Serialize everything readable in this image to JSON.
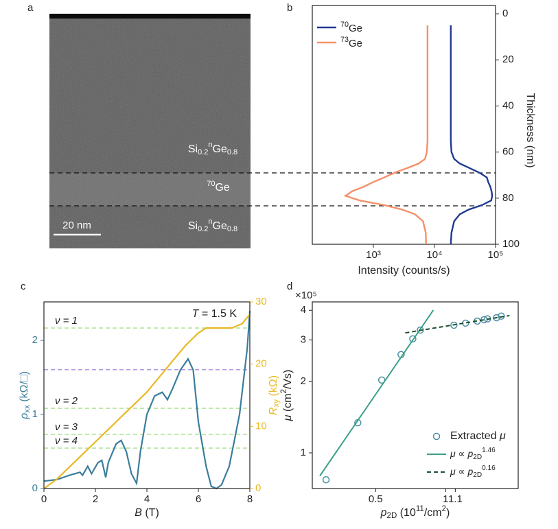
{
  "panel_a": {
    "label": "a",
    "layer_labels": [
      [
        "Si",
        "0.2",
        "n",
        "Ge",
        "0.8"
      ],
      [
        "70",
        "Ge"
      ],
      [
        "Si",
        "0.2",
        "n",
        "Ge",
        "0.8"
      ]
    ],
    "scale_bar": "20 nm"
  },
  "chart_data": [
    {
      "type": "line",
      "panel_label": "b",
      "orientation": "vertical",
      "xlabel": "Intensity (counts/s)",
      "ylabel": "Thickness (nm)",
      "xscale": "log",
      "xlim": [
        100,
        100000
      ],
      "xticks": [
        {
          "value": 1000,
          "label": "10³"
        },
        {
          "value": 10000,
          "label": "10⁴"
        },
        {
          "value": 100000,
          "label": "10⁵"
        }
      ],
      "ylim": [
        -3.6,
        100
      ],
      "yinverted": true,
      "yticks": [
        0,
        20,
        40,
        60,
        80,
        100
      ],
      "legend": "upper left",
      "thickness": [
        5,
        10,
        20,
        30,
        40,
        50,
        55,
        60,
        63,
        65,
        67,
        69,
        71,
        73,
        75,
        77,
        79,
        81,
        83,
        85,
        87,
        90,
        95,
        100
      ],
      "series": [
        {
          "name": [
            "70",
            "Ge"
          ],
          "color": "#1f3a93",
          "values": [
            18500,
            18500,
            18500,
            18500,
            18500,
            18500,
            18500,
            19000,
            21000,
            26000,
            38000,
            55000,
            72000,
            76000,
            82000,
            86000,
            88000,
            85000,
            60000,
            36000,
            26000,
            21000,
            19000,
            18500
          ]
        },
        {
          "name": [
            "73",
            "Ge"
          ],
          "color": "#f4916a",
          "values": [
            7700,
            7700,
            7700,
            7700,
            7700,
            7700,
            7700,
            7500,
            7000,
            5500,
            3500,
            2200,
            1500,
            1000,
            700,
            450,
            350,
            600,
            1500,
            3000,
            4800,
            6500,
            7200,
            7300
          ]
        }
      ]
    },
    {
      "type": "line",
      "panel_label": "c",
      "xlabel": [
        "B",
        " (T)"
      ],
      "ylabel": [
        "ρ",
        "xx",
        " (kΩ/□)"
      ],
      "y2label": [
        "R",
        "xy",
        " (kΩ)"
      ],
      "xlim": [
        0,
        8
      ],
      "xticks": [
        0,
        2,
        4,
        6,
        8
      ],
      "ylim": [
        0,
        2.52
      ],
      "yticks": [
        0,
        1,
        2
      ],
      "y2lim": [
        0,
        30
      ],
      "y2ticks": [
        0,
        10,
        20,
        30
      ],
      "annotation": [
        "T",
        " = 1.5 K"
      ],
      "reference_lines": [
        {
          "label": "ν = 1",
          "value": 25.8,
          "color": "#a6df8a",
          "axis": "y2"
        },
        {
          "label": "ν = 2",
          "value": 12.9,
          "color": "#a6df8a",
          "axis": "y2"
        },
        {
          "label": "ν = 3",
          "value": 8.7,
          "color": "#a6df8a",
          "axis": "y2"
        },
        {
          "label": "ν = 4",
          "value": 6.5,
          "color": "#a6df8a",
          "axis": "y2"
        },
        {
          "value": 19.1,
          "color": "#a98de0",
          "axis": "y2"
        }
      ],
      "series": [
        {
          "color": "#3b7d9c",
          "x": [
            0,
            0.5,
            1.0,
            1.2,
            1.4,
            1.5,
            1.7,
            1.85,
            2.1,
            2.25,
            2.4,
            2.5,
            2.8,
            3.0,
            3.2,
            3.4,
            3.6,
            3.75,
            4.0,
            4.3,
            4.6,
            4.8,
            5.0,
            5.3,
            5.6,
            5.8,
            6.0,
            6.3,
            6.5,
            6.7,
            6.9,
            7.2,
            7.6,
            7.9,
            8.0
          ],
          "values": [
            0.1,
            0.12,
            0.18,
            0.2,
            0.22,
            0.18,
            0.3,
            0.2,
            0.35,
            0.38,
            0.15,
            0.35,
            0.6,
            0.65,
            0.5,
            0.2,
            0.07,
            0.5,
            1.0,
            1.25,
            1.3,
            1.2,
            1.35,
            1.6,
            1.75,
            1.6,
            0.9,
            0.3,
            0.03,
            0.0,
            0.05,
            0.3,
            1.0,
            1.9,
            2.4
          ]
        },
        {
          "color": "#e8b923",
          "axis": "y2",
          "x": [
            0,
            0.5,
            1,
            1.5,
            2,
            2.5,
            3,
            3.5,
            4,
            4.5,
            5,
            5.5,
            6,
            6.3,
            7.3,
            7.7,
            8
          ],
          "values": [
            0,
            1.5,
            3.5,
            5.5,
            7.5,
            9.5,
            11.5,
            13.5,
            15.5,
            18,
            20.5,
            23,
            25,
            25.8,
            25.8,
            26.5,
            28
          ]
        }
      ]
    },
    {
      "type": "scatter",
      "panel_label": "d",
      "axis_multiplier": "×10⁵",
      "xlabel": [
        "p",
        "2D",
        " (10",
        "11",
        "/cm",
        "2",
        ")"
      ],
      "ylabel": [
        "μ",
        " (cm",
        "2",
        "/Vs)"
      ],
      "xscale": "log",
      "yscale": "log",
      "xlim": [
        0.267,
        2.05
      ],
      "xticks": [
        0.5,
        1,
        1.1
      ],
      "ylim": [
        0.707,
        4.34
      ],
      "yticks": [
        1,
        2,
        3,
        4
      ],
      "legend": "lower right",
      "series": [
        {
          "name": [
            "Extracted ",
            "μ"
          ],
          "style": "marker",
          "color": "#4a8fa3",
          "x": [
            0.306,
            0.419,
            0.531,
            0.643,
            0.722,
            0.778,
            1.085,
            1.218,
            1.367,
            1.463,
            1.513,
            1.654,
            1.734
          ],
          "values": [
            0.77,
            1.34,
            2.03,
            2.6,
            3.03,
            3.3,
            3.46,
            3.53,
            3.6,
            3.65,
            3.68,
            3.72,
            3.78
          ]
        },
        {
          "name": [
            "μ",
            " ∝ ",
            "p",
            "2D",
            "1.46"
          ],
          "style": "solid",
          "color": "#3aa08a",
          "x": [
            0.288,
            0.885
          ],
          "values": [
            0.8,
            4.01
          ]
        },
        {
          "name": [
            "μ",
            " ∝ ",
            "p",
            "2D",
            "0.16"
          ],
          "style": "dashed",
          "color": "#1d4d2e",
          "x": [
            0.67,
            1.88
          ],
          "values": [
            3.21,
            3.8
          ]
        }
      ]
    }
  ]
}
